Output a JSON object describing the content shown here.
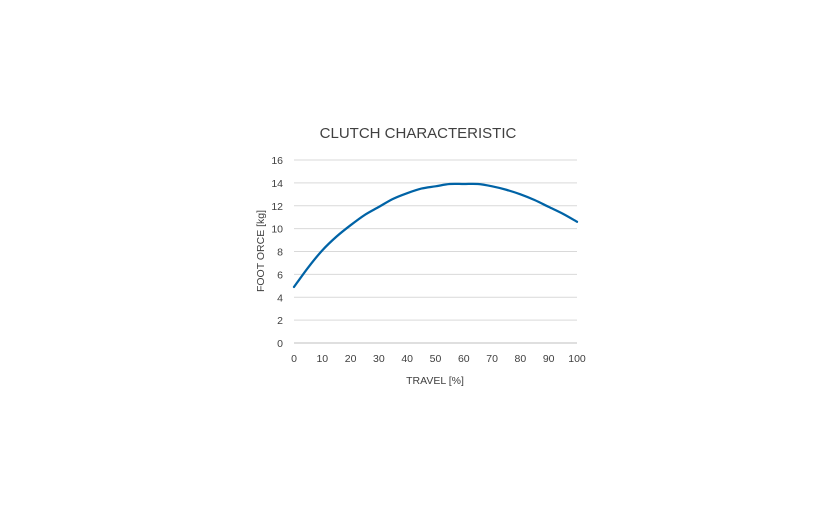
{
  "chart_data": {
    "type": "line",
    "title": "CLUTCH CHARACTERISTIC",
    "xlabel": "TRAVEL [%]",
    "ylabel": "FOOT ORCE [kg]",
    "xlim": [
      0,
      100
    ],
    "ylim": [
      0,
      16
    ],
    "x_ticks": [
      0,
      10,
      20,
      30,
      40,
      50,
      60,
      70,
      80,
      90,
      100
    ],
    "y_ticks": [
      0,
      2,
      4,
      6,
      8,
      10,
      12,
      14,
      16
    ],
    "grid": "horizontal",
    "legend": "none",
    "series": [
      {
        "color": "#0063a6",
        "x": [
          0,
          5,
          10,
          15,
          20,
          25,
          30,
          35,
          40,
          45,
          50,
          55,
          60,
          65,
          70,
          75,
          80,
          85,
          90,
          95,
          100
        ],
        "y": [
          4.9,
          6.6,
          8.1,
          9.3,
          10.3,
          11.2,
          11.9,
          12.6,
          13.1,
          13.5,
          13.7,
          13.9,
          13.9,
          13.9,
          13.7,
          13.4,
          13.0,
          12.5,
          11.9,
          11.3,
          10.6
        ]
      }
    ]
  }
}
